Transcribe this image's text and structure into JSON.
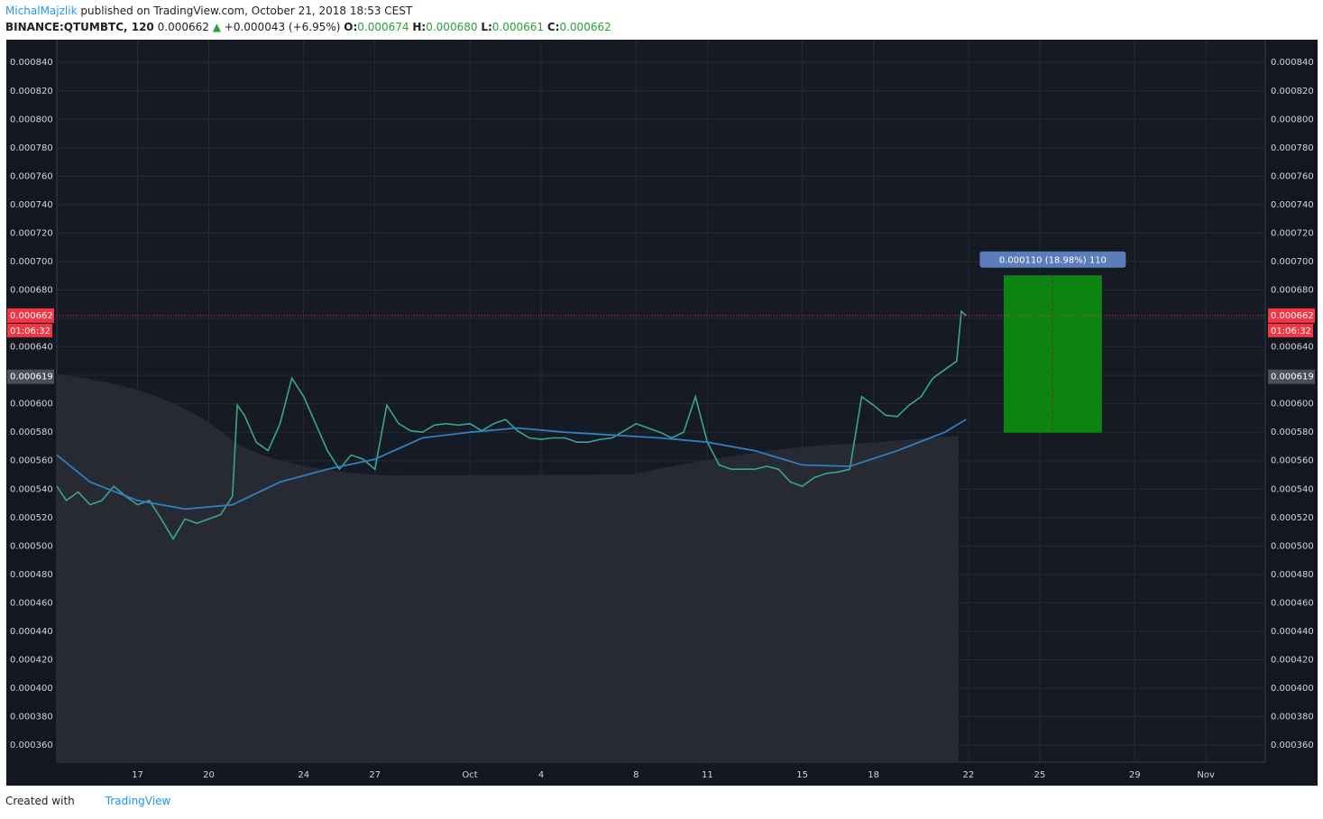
{
  "header": {
    "author": "MichalMajzlik",
    "published": "published on TradingView.com, October 21, 2018 18:53 CEST",
    "symbol": "BINANCE:QTUMBTC, 120",
    "price": "0.000662",
    "arrow": "▲",
    "change": "+0.000043 (+6.95%)",
    "open_label": "O:",
    "open": "0.000674",
    "high_label": "H:",
    "high": "0.000680",
    "low_label": "L:",
    "low": "0.000661",
    "close_label": "C:",
    "close": "0.000662"
  },
  "footer": {
    "created": "Created with",
    "brand": "TradingView"
  },
  "chart_data": {
    "type": "line",
    "xlim": [
      13.6,
      64.5
    ],
    "xticks": [
      17,
      20,
      24,
      27,
      {
        "value": 31,
        "label": "Oct"
      },
      {
        "value": 34,
        "label": "4"
      },
      {
        "value": 38,
        "label": "8"
      },
      {
        "value": 41,
        "label": "11"
      },
      {
        "value": 45,
        "label": "15"
      },
      {
        "value": 48,
        "label": "18"
      },
      {
        "value": 52,
        "label": "22"
      },
      {
        "value": 55,
        "label": "25"
      },
      {
        "value": 59,
        "label": "29"
      },
      {
        "value": 62,
        "label": "Nov"
      }
    ],
    "ylim": [
      0.000348,
      0.000856
    ],
    "yticks": [
      {
        "value": 0.00036,
        "label": "0.000360"
      },
      {
        "value": 0.00038,
        "label": "0.000380"
      },
      {
        "value": 0.0004,
        "label": "0.000400"
      },
      {
        "value": 0.00042,
        "label": "0.000420"
      },
      {
        "value": 0.00044,
        "label": "0.000440"
      },
      {
        "value": 0.00046,
        "label": "0.000460"
      },
      {
        "value": 0.00048,
        "label": "0.000480"
      },
      {
        "value": 0.0005,
        "label": "0.000500"
      },
      {
        "value": 0.00052,
        "label": "0.000520"
      },
      {
        "value": 0.00054,
        "label": "0.000540"
      },
      {
        "value": 0.00056,
        "label": "0.000560"
      },
      {
        "value": 0.00058,
        "label": "0.000580"
      },
      {
        "value": 0.0006,
        "label": "0.000600"
      },
      {
        "value": 0.00062,
        "label": "0.000620"
      },
      {
        "value": 0.00064,
        "label": "0.000640"
      },
      {
        "value": 0.00066,
        "label": "0.000660"
      },
      {
        "value": 0.00068,
        "label": "0.000680"
      },
      {
        "value": 0.0007,
        "label": "0.000700"
      },
      {
        "value": 0.00072,
        "label": "0.000720"
      },
      {
        "value": 0.00074,
        "label": "0.000740"
      },
      {
        "value": 0.00076,
        "label": "0.000760"
      },
      {
        "value": 0.00078,
        "label": "0.000780"
      },
      {
        "value": 0.0008,
        "label": "0.000800"
      },
      {
        "value": 0.00082,
        "label": "0.000820"
      },
      {
        "value": 0.00084,
        "label": "0.000840"
      }
    ],
    "grid": true,
    "series": [
      {
        "color": "#3aa58f",
        "x": [
          13.6,
          14,
          14.5,
          15,
          15.5,
          16,
          16.5,
          17,
          17.5,
          18,
          18.5,
          19,
          19.5,
          20,
          20.5,
          21,
          21.2,
          21.5,
          22,
          22.5,
          23,
          23.5,
          24,
          24.5,
          25,
          25.5,
          26,
          26.5,
          27,
          27.5,
          28,
          28.5,
          29,
          29.5,
          30,
          30.5,
          31,
          31.5,
          32,
          32.5,
          33,
          33.5,
          34,
          34.5,
          35,
          35.5,
          36,
          36.5,
          37,
          37.5,
          38,
          38.5,
          39,
          39.5,
          40,
          40.5,
          41,
          41.5,
          42,
          42.5,
          43,
          43.5,
          44,
          44.5,
          45,
          45.5,
          46,
          46.5,
          47,
          47.5,
          48,
          48.5,
          49,
          49.5,
          50,
          50.5,
          51,
          51.5,
          51.7,
          51.9
        ],
        "values": [
          0.000542,
          0.000532,
          0.000538,
          0.000529,
          0.000532,
          0.000542,
          0.000535,
          0.000529,
          0.000532,
          0.000519,
          0.000505,
          0.000519,
          0.000516,
          0.000519,
          0.000522,
          0.000535,
          0.000599,
          0.000592,
          0.000573,
          0.000567,
          0.000586,
          0.000618,
          0.000605,
          0.000586,
          0.000567,
          0.000554,
          0.000564,
          0.000561,
          0.000554,
          0.000599,
          0.000586,
          0.000581,
          0.00058,
          0.000585,
          0.000586,
          0.000585,
          0.000586,
          0.000581,
          0.000586,
          0.000589,
          0.000581,
          0.000576,
          0.000575,
          0.000576,
          0.000576,
          0.000573,
          0.000573,
          0.000575,
          0.000576,
          0.000581,
          0.000586,
          0.000583,
          0.00058,
          0.000576,
          0.00058,
          0.000605,
          0.000573,
          0.000557,
          0.000554,
          0.000554,
          0.000554,
          0.000556,
          0.000554,
          0.000545,
          0.000542,
          0.000548,
          0.000551,
          0.000552,
          0.000554,
          0.000605,
          0.000599,
          0.000592,
          0.000591,
          0.000599,
          0.000605,
          0.000618,
          0.000624,
          0.00063,
          0.000665,
          0.000662
        ]
      },
      {
        "color": "#2f7fc1",
        "x": [
          13.6,
          15,
          17,
          19,
          21,
          23,
          25,
          27,
          29,
          31,
          33,
          35,
          37,
          39,
          41,
          43,
          45,
          47,
          49,
          51,
          51.9
        ],
        "values": [
          0.000564,
          0.000545,
          0.000532,
          0.000526,
          0.000529,
          0.000545,
          0.000554,
          0.000561,
          0.000576,
          0.00058,
          0.000583,
          0.00058,
          0.000578,
          0.000576,
          0.000573,
          0.000567,
          0.000557,
          0.000556,
          0.000567,
          0.00058,
          0.000589
        ]
      }
    ],
    "last_price": {
      "value": 0.000662,
      "label": "0.000662",
      "countdown": "01:06:32",
      "color": "#f23645"
    },
    "marker_price": {
      "value": 0.000619,
      "label": "0.000619"
    },
    "measure": {
      "label": "0.000110 (18.98%) 110",
      "from": 0.00058,
      "to": 0.00069,
      "x": [
        53.5,
        57.6
      ],
      "color": "#0b8a12"
    }
  }
}
